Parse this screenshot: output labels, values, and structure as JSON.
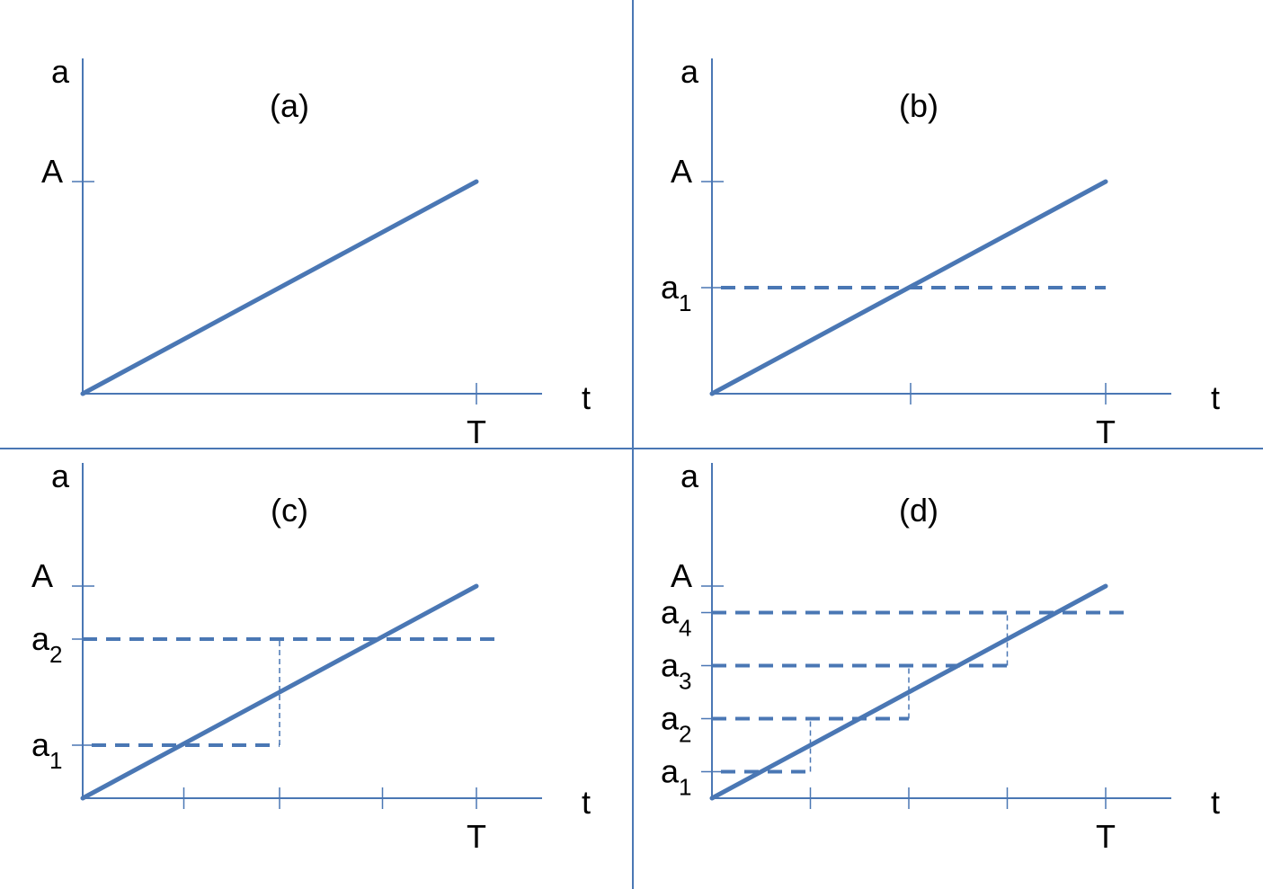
{
  "colors": {
    "line": "#4a77b4",
    "text": "#000000",
    "background": "#ffffff"
  },
  "panels": [
    {
      "label": "(a)",
      "y_axis_label": "a",
      "x_axis_label": "t",
      "x_end_label": "T",
      "y_top_label": "A",
      "levels": [],
      "step_count": 0
    },
    {
      "label": "(b)",
      "y_axis_label": "a",
      "x_axis_label": "t",
      "x_end_label": "T",
      "y_top_label": "A",
      "levels": [
        {
          "base": "a",
          "sub": "1"
        }
      ],
      "step_count": 1
    },
    {
      "label": "(c)",
      "y_axis_label": "a",
      "x_axis_label": "t",
      "x_end_label": "T",
      "y_top_label": "A",
      "levels": [
        {
          "base": "a",
          "sub": "1"
        },
        {
          "base": "a",
          "sub": "2"
        }
      ],
      "step_count": 2
    },
    {
      "label": "(d)",
      "y_axis_label": "a",
      "x_axis_label": "t",
      "x_end_label": "T",
      "y_top_label": "A",
      "levels": [
        {
          "base": "a",
          "sub": "1"
        },
        {
          "base": "a",
          "sub": "2"
        },
        {
          "base": "a",
          "sub": "3"
        },
        {
          "base": "a",
          "sub": "4"
        }
      ],
      "step_count": 4
    }
  ]
}
